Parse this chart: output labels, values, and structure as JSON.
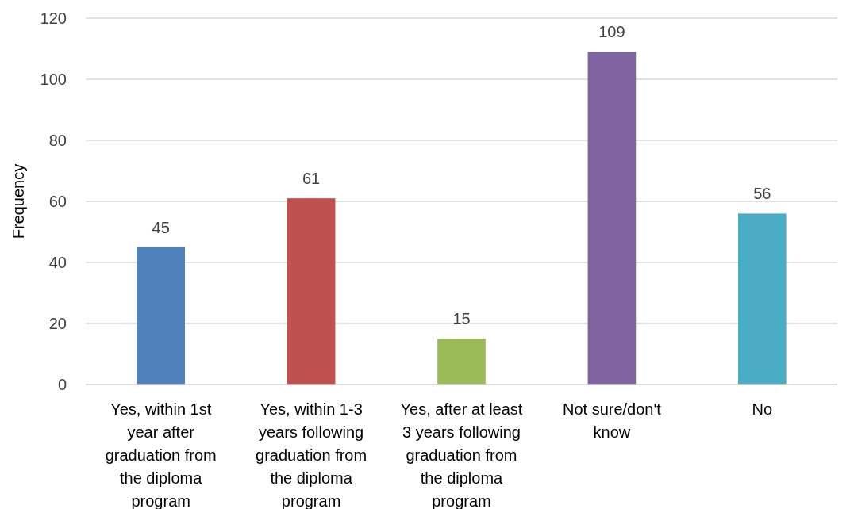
{
  "chart_data": {
    "type": "bar",
    "ylabel": "Frequency",
    "categories": [
      "Yes, within 1st year after graduation from the diploma program",
      "Yes, within 1-3 years following graduation from the diploma program",
      "Yes, after at least 3 years following graduation from the diploma program",
      "Not sure/don't know",
      "No"
    ],
    "values": [
      45,
      61,
      15,
      109,
      56
    ],
    "colors": [
      "#4f81bd",
      "#c0504d",
      "#9bbb59",
      "#8064a2",
      "#4bacc6"
    ],
    "ylim": [
      0,
      120
    ],
    "yticks": [
      0,
      20,
      40,
      60,
      80,
      100,
      120
    ],
    "grid": "y",
    "data_labels": true
  }
}
